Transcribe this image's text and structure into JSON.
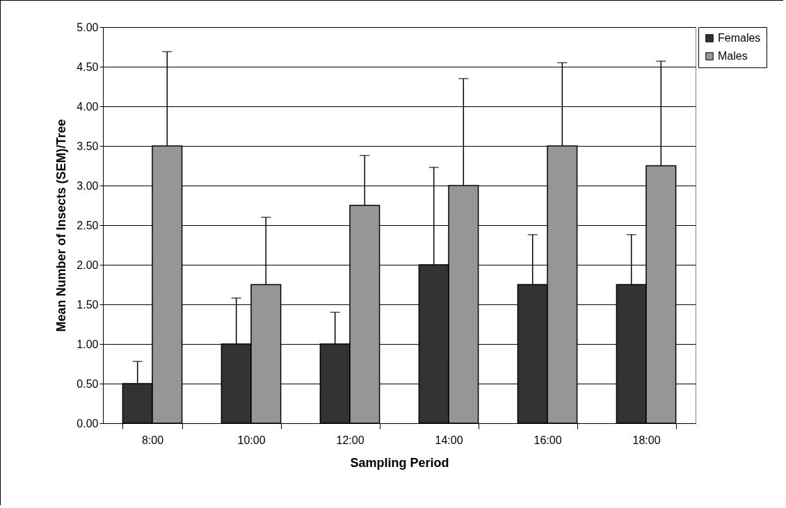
{
  "chart_data": {
    "type": "bar",
    "xlabel": "Sampling Period",
    "ylabel": "Mean Number of Insects (SEM)/Tree",
    "categories": [
      "8:00",
      "10:00",
      "12:00",
      "14:00",
      "16:00",
      "18:00"
    ],
    "series": [
      {
        "name": "Females",
        "color": "#333333",
        "values": [
          0.5,
          1.0,
          1.0,
          2.0,
          1.75,
          1.75
        ],
        "errors": [
          [
            0.5,
            0.78
          ],
          [
            1.0,
            1.58
          ],
          [
            1.0,
            1.4
          ],
          [
            2.0,
            3.23
          ],
          [
            1.75,
            2.38
          ],
          [
            1.75,
            2.38
          ]
        ]
      },
      {
        "name": "Males",
        "color": "#969696",
        "values": [
          3.5,
          1.75,
          2.75,
          3.0,
          3.5,
          3.25
        ],
        "errors": [
          [
            3.5,
            4.69
          ],
          [
            1.75,
            2.6
          ],
          [
            2.75,
            3.38
          ],
          [
            3.0,
            4.35
          ],
          [
            3.5,
            4.55
          ],
          [
            3.25,
            4.57
          ]
        ]
      }
    ],
    "ylim": [
      0,
      5
    ],
    "yticks": [
      {
        "value": 0,
        "label": "0.00"
      },
      {
        "value": 0.5,
        "label": "0.50"
      },
      {
        "value": 1,
        "label": "1.00"
      },
      {
        "value": 1.5,
        "label": "1.50"
      },
      {
        "value": 2,
        "label": "2.00"
      },
      {
        "value": 2.5,
        "label": "2.50"
      },
      {
        "value": 3,
        "label": "3.00"
      },
      {
        "value": 3.5,
        "label": "3.50"
      },
      {
        "value": 4,
        "label": "4.00"
      },
      {
        "value": 4.5,
        "label": "4.50"
      },
      {
        "value": 5,
        "label": "5.00"
      }
    ],
    "grid": "y",
    "legend": "right"
  }
}
